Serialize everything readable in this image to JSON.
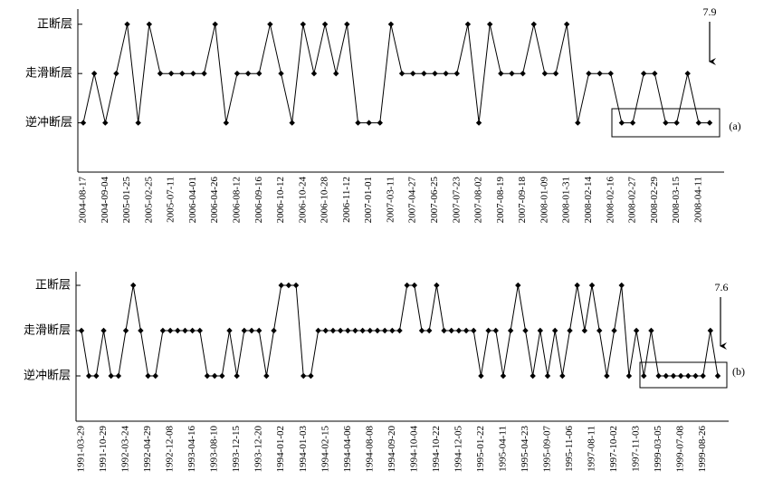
{
  "chart_data": [
    {
      "type": "line",
      "magnitude": "7.9",
      "label": "(a)",
      "categories": [
        "2004-08-17",
        null,
        "2004-09-04",
        null,
        "2005-01-25",
        null,
        "2005-02-25",
        null,
        "2005-07-11",
        null,
        "2006-04-01",
        null,
        "2006-04-26",
        null,
        "2006-08-12",
        null,
        "2006-09-16",
        null,
        "2006-10-12",
        null,
        "2006-10-24",
        null,
        "2006-10-28",
        null,
        "2006-11-12",
        null,
        "2007-01-01",
        null,
        "2007-03-11",
        null,
        "2007-04-27",
        null,
        "2007-06-25",
        null,
        "2007-07-23",
        null,
        "2007-08-02",
        null,
        "2007-08-19",
        null,
        "2007-09-18",
        null,
        "2008-01-09",
        null,
        "2008-01-31",
        null,
        "2008-02-14",
        null,
        "2008-02-16",
        null,
        "2008-02-27",
        null,
        "2008-02-29",
        null,
        "2008-03-15",
        null,
        "2008-04-11",
        null
      ],
      "values": [
        1,
        2,
        1,
        2,
        3,
        1,
        3,
        2,
        2,
        2,
        2,
        2,
        3,
        1,
        2,
        2,
        2,
        3,
        2,
        1,
        3,
        2,
        3,
        2,
        3,
        1,
        1,
        1,
        3,
        2,
        2,
        2,
        2,
        2,
        2,
        3,
        1,
        3,
        2,
        2,
        2,
        3,
        2,
        2,
        3,
        1,
        2,
        2,
        2,
        1,
        1,
        2,
        2,
        1,
        1,
        2,
        1,
        1
      ],
      "color": "#000000",
      "ylim": [
        0,
        3.4
      ],
      "yticks": [
        {
          "value": 1,
          "label": "逆冲断层"
        },
        {
          "value": 2,
          "label": "走滑断层"
        },
        {
          "value": 3,
          "label": "正断层"
        }
      ]
    },
    {
      "type": "line",
      "magnitude": "7.6",
      "label": "(b)",
      "categories": [
        "1991-03-29",
        null,
        null,
        "1991-10-29",
        null,
        null,
        "1992-03-24",
        null,
        null,
        "1992-04-29",
        null,
        null,
        "1992-12-08",
        null,
        null,
        "1993-04-16",
        null,
        null,
        "1993-08-10",
        null,
        null,
        "1993-12-15",
        null,
        null,
        "1993-12-20",
        null,
        null,
        "1994-01-02",
        null,
        null,
        "1994-01-03",
        null,
        null,
        "1994-02-15",
        null,
        null,
        "1994-04-06",
        null,
        null,
        "1994-08-08",
        null,
        null,
        "1994-09-20",
        null,
        null,
        "1994-10-04",
        null,
        null,
        "1994-10-22",
        null,
        null,
        "1994-12-05",
        null,
        null,
        "1995-01-22",
        null,
        null,
        "1995-04-11",
        null,
        null,
        "1995-04-23",
        null,
        null,
        "1995-09-07",
        null,
        null,
        "1995-11-06",
        null,
        null,
        "1997-08-11",
        null,
        null,
        "1997-10-02",
        null,
        null,
        "1997-11-03",
        null,
        null,
        "1999-03-05",
        null,
        null,
        "1999-07-08",
        null,
        null,
        "1999-08-26",
        null,
        null
      ],
      "values": [
        2,
        1,
        1,
        2,
        1,
        1,
        2,
        3,
        2,
        1,
        1,
        2,
        2,
        2,
        2,
        2,
        2,
        1,
        1,
        1,
        2,
        1,
        2,
        2,
        2,
        1,
        2,
        3,
        3,
        3,
        1,
        1,
        2,
        2,
        2,
        2,
        2,
        2,
        2,
        2,
        2,
        2,
        2,
        2,
        3,
        3,
        2,
        2,
        3,
        2,
        2,
        2,
        2,
        2,
        1,
        2,
        2,
        1,
        2,
        3,
        2,
        1,
        2,
        1,
        2,
        1,
        2,
        3,
        2,
        3,
        2,
        1,
        2,
        3,
        1,
        2,
        1,
        2,
        1,
        1,
        1,
        1,
        1,
        1,
        1,
        2,
        1
      ],
      "color": "#000000",
      "ylim": [
        0,
        3.4
      ],
      "yticks": [
        {
          "value": 1,
          "label": "逆冲断层"
        },
        {
          "value": 2,
          "label": "走滑断层"
        },
        {
          "value": 3,
          "label": "正断层"
        }
      ]
    }
  ]
}
